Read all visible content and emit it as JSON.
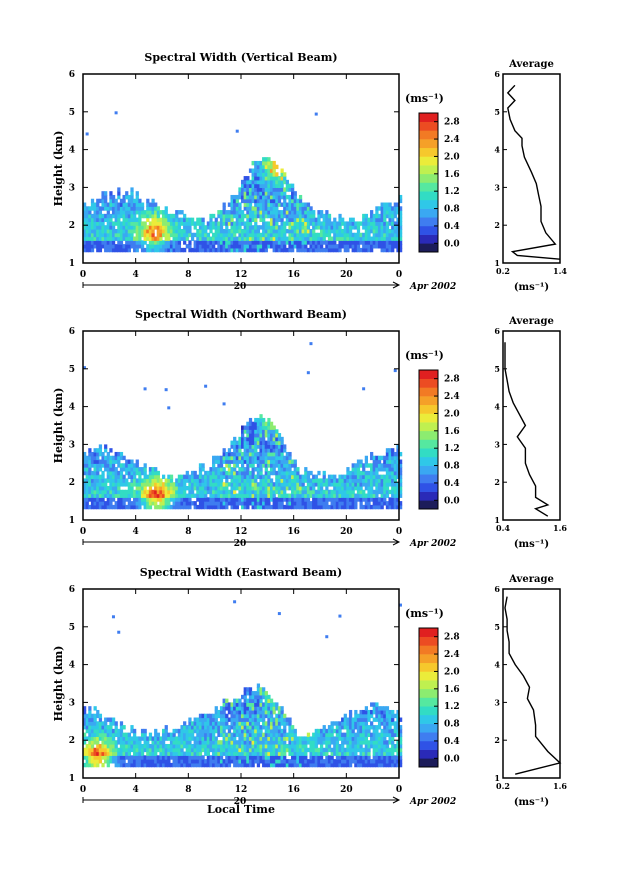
{
  "figure": {
    "shared_xlabel": "Local Time",
    "date_label": "Apr 2002",
    "day_label": "20"
  },
  "colorbar": {
    "unit": "(ms⁻¹)",
    "colors": [
      "#1c1c5a",
      "#2a2ab8",
      "#2f52e6",
      "#3f7df0",
      "#3aa8f2",
      "#2fc8e8",
      "#32dcc4",
      "#55e8a0",
      "#8cec70",
      "#bff050",
      "#ebec3a",
      "#f6c82c",
      "#f5a028",
      "#f27a24",
      "#ec4c22",
      "#e02020"
    ]
  },
  "chart_data": [
    {
      "type": "heatmap",
      "title": "Spectral Width (Vertical Beam)",
      "xlabel": "",
      "ylabel": "Height (km)",
      "xlim": [
        0,
        24
      ],
      "ylim": [
        1,
        6
      ],
      "xticks": [
        "0",
        "4",
        "8",
        "12",
        "16",
        "20",
        "0"
      ],
      "yticks": [
        "1",
        "2",
        "3",
        "4",
        "5",
        "6"
      ],
      "colorbar_ticks": [
        "0.0",
        "0.4",
        "0.8",
        "1.2",
        "1.6",
        "2.0",
        "2.4",
        "2.8"
      ],
      "hotspots": [
        {
          "x": 14.8,
          "y": 3.6,
          "v": 2.8
        },
        {
          "x": 5.3,
          "y": 1.8,
          "v": 2.4
        }
      ],
      "average": {
        "title": "Average",
        "xlabel": "(ms⁻¹)",
        "xlim": [
          0.2,
          1.4
        ],
        "xticks": [
          "0.2",
          "1.4"
        ],
        "yticks": [
          "1",
          "2",
          "3",
          "4",
          "5",
          "6"
        ],
        "profile": [
          [
            1.4,
            1.1
          ],
          [
            0.5,
            1.2
          ],
          [
            0.4,
            1.3
          ],
          [
            1.3,
            1.5
          ],
          [
            1.1,
            1.8
          ],
          [
            1.0,
            2.1
          ],
          [
            1.0,
            2.5
          ],
          [
            0.95,
            2.8
          ],
          [
            0.9,
            3.1
          ],
          [
            0.8,
            3.4
          ],
          [
            0.65,
            3.8
          ],
          [
            0.6,
            4.1
          ],
          [
            0.6,
            4.3
          ],
          [
            0.45,
            4.5
          ],
          [
            0.35,
            4.8
          ],
          [
            0.3,
            5.1
          ],
          [
            0.45,
            5.3
          ],
          [
            0.3,
            5.5
          ],
          [
            0.45,
            5.7
          ]
        ]
      }
    },
    {
      "type": "heatmap",
      "title": "Spectral Width (Northward Beam)",
      "xlabel": "",
      "ylabel": "Height (km)",
      "xlim": [
        0,
        24
      ],
      "ylim": [
        1,
        6
      ],
      "xticks": [
        "0",
        "4",
        "8",
        "12",
        "16",
        "20",
        "0"
      ],
      "yticks": [
        "1",
        "2",
        "3",
        "4",
        "5",
        "6"
      ],
      "colorbar_ticks": [
        "0.0",
        "0.4",
        "0.8",
        "1.2",
        "1.6",
        "2.0",
        "2.4",
        "2.8"
      ],
      "hotspots": [
        {
          "x": 14.5,
          "y": 3.8,
          "v": 2.8
        },
        {
          "x": 5.5,
          "y": 1.6,
          "v": 2.6
        }
      ],
      "average": {
        "title": "Average",
        "xlabel": "(ms⁻¹)",
        "xlim": [
          0.2,
          1.6
        ],
        "xticks": [
          "0.4",
          "1.6"
        ],
        "yticks": [
          "1",
          "2",
          "3",
          "4",
          "5",
          "6"
        ],
        "profile": [
          [
            1.3,
            1.1
          ],
          [
            1.0,
            1.3
          ],
          [
            1.3,
            1.4
          ],
          [
            1.0,
            1.6
          ],
          [
            1.0,
            1.9
          ],
          [
            0.85,
            2.2
          ],
          [
            0.75,
            2.5
          ],
          [
            0.75,
            2.9
          ],
          [
            0.55,
            3.2
          ],
          [
            0.75,
            3.5
          ],
          [
            0.55,
            3.9
          ],
          [
            0.45,
            4.1
          ],
          [
            0.35,
            4.4
          ],
          [
            0.3,
            4.7
          ],
          [
            0.25,
            5.0
          ],
          [
            0.25,
            5.3
          ],
          [
            0.25,
            5.7
          ]
        ]
      }
    },
    {
      "type": "heatmap",
      "title": "Spectral Width (Eastward Beam)",
      "xlabel": "Local Time",
      "ylabel": "Height (km)",
      "xlim": [
        0,
        24
      ],
      "ylim": [
        1,
        6
      ],
      "xticks": [
        "0",
        "4",
        "8",
        "12",
        "16",
        "20",
        "0"
      ],
      "yticks": [
        "1",
        "2",
        "3",
        "4",
        "5",
        "6"
      ],
      "colorbar_ticks": [
        "0.0",
        "0.4",
        "0.8",
        "1.2",
        "1.6",
        "2.0",
        "2.4",
        "2.8"
      ],
      "hotspots": [
        {
          "x": 14.8,
          "y": 3.4,
          "v": 2.8
        },
        {
          "x": 1.0,
          "y": 1.5,
          "v": 2.6
        }
      ],
      "average": {
        "title": "Average",
        "xlabel": "(ms⁻¹)",
        "xlim": [
          0.2,
          1.6
        ],
        "xticks": [
          "0.2",
          "1.6"
        ],
        "yticks": [
          "1",
          "2",
          "3",
          "4",
          "5",
          "6"
        ],
        "profile": [
          [
            0.5,
            1.1
          ],
          [
            1.6,
            1.4
          ],
          [
            1.3,
            1.7
          ],
          [
            1.0,
            2.1
          ],
          [
            1.0,
            2.4
          ],
          [
            0.95,
            2.8
          ],
          [
            0.8,
            3.1
          ],
          [
            0.85,
            3.4
          ],
          [
            0.7,
            3.7
          ],
          [
            0.5,
            4.0
          ],
          [
            0.35,
            4.3
          ],
          [
            0.35,
            4.6
          ],
          [
            0.3,
            4.9
          ],
          [
            0.3,
            5.2
          ],
          [
            0.25,
            5.5
          ],
          [
            0.3,
            5.8
          ]
        ]
      }
    }
  ]
}
